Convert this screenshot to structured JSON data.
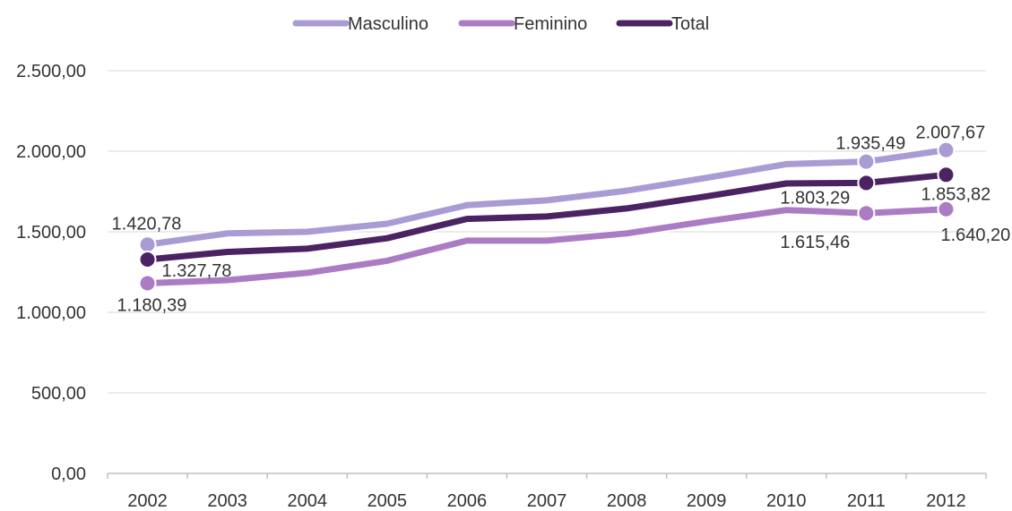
{
  "chart_data": {
    "type": "line",
    "categories": [
      "2002",
      "2003",
      "2004",
      "2005",
      "2006",
      "2007",
      "2008",
      "2009",
      "2010",
      "2011",
      "2012"
    ],
    "series": [
      {
        "name": "Masculino",
        "color": "#a99bd3",
        "values": [
          1420.78,
          1490,
          1500,
          1550,
          1665,
          1695,
          1755,
          1835,
          1920,
          1935.49,
          2007.67
        ]
      },
      {
        "name": "Feminino",
        "color": "#ab7cc4",
        "values": [
          1180.39,
          1200,
          1245,
          1320,
          1445,
          1445,
          1490,
          1565,
          1635,
          1615.46,
          1640.2
        ]
      },
      {
        "name": "Total",
        "color": "#4b2362",
        "values": [
          1327.78,
          1375,
          1395,
          1460,
          1580,
          1595,
          1645,
          1720,
          1800,
          1803.29,
          1853.82
        ]
      }
    ],
    "data_labels": [
      {
        "series": 0,
        "index": 0,
        "text": "1.420,78"
      },
      {
        "series": 2,
        "index": 0,
        "text": "1.327,78"
      },
      {
        "series": 1,
        "index": 0,
        "text": "1.180,39"
      },
      {
        "series": 0,
        "index": 9,
        "text": "1.935,49"
      },
      {
        "series": 0,
        "index": 10,
        "text": "2.007,67"
      },
      {
        "series": 2,
        "index": 9,
        "text": "1.803,29"
      },
      {
        "series": 2,
        "index": 10,
        "text": "1.853,82"
      },
      {
        "series": 1,
        "index": 9,
        "text": "1.615,46"
      },
      {
        "series": 1,
        "index": 10,
        "text": "1.640,20"
      }
    ],
    "y_ticks": [
      "0,00",
      "500,00",
      "1.000,00",
      "1.500,00",
      "2.000,00",
      "2.500,00"
    ],
    "ylim": [
      0,
      2500
    ],
    "grid": true,
    "legend_position": "top-center",
    "title": "",
    "xlabel": "",
    "ylabel": ""
  }
}
